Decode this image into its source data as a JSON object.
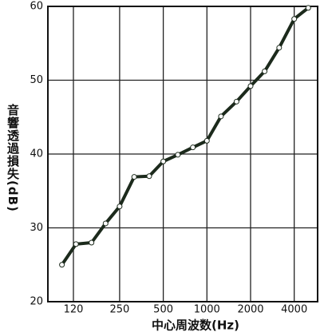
{
  "chart_data": {
    "type": "line",
    "x_label": "中心周波数(Hz)",
    "y_label": "音響透過損失(dB)",
    "x": [
      100,
      125,
      160,
      200,
      250,
      315,
      400,
      500,
      630,
      800,
      1000,
      1250,
      1600,
      2000,
      2500,
      3150,
      4000,
      5000
    ],
    "series": [
      {
        "color": "#1c2a1c",
        "values": [
          25,
          27.8,
          28,
          30.6,
          32.9,
          36.9,
          37,
          39,
          39.9,
          40.9,
          41.8,
          45.1,
          47.1,
          49.2,
          51.2,
          54.4,
          58.3,
          59.8
        ]
      }
    ],
    "xscale": "log",
    "xlim": [
      80,
      5800
    ],
    "xticks": [
      120,
      250,
      500,
      1000,
      2000,
      4000
    ],
    "ylim": [
      20,
      60
    ],
    "yticks": [
      20,
      30,
      40,
      50,
      60
    ],
    "grid": true
  }
}
